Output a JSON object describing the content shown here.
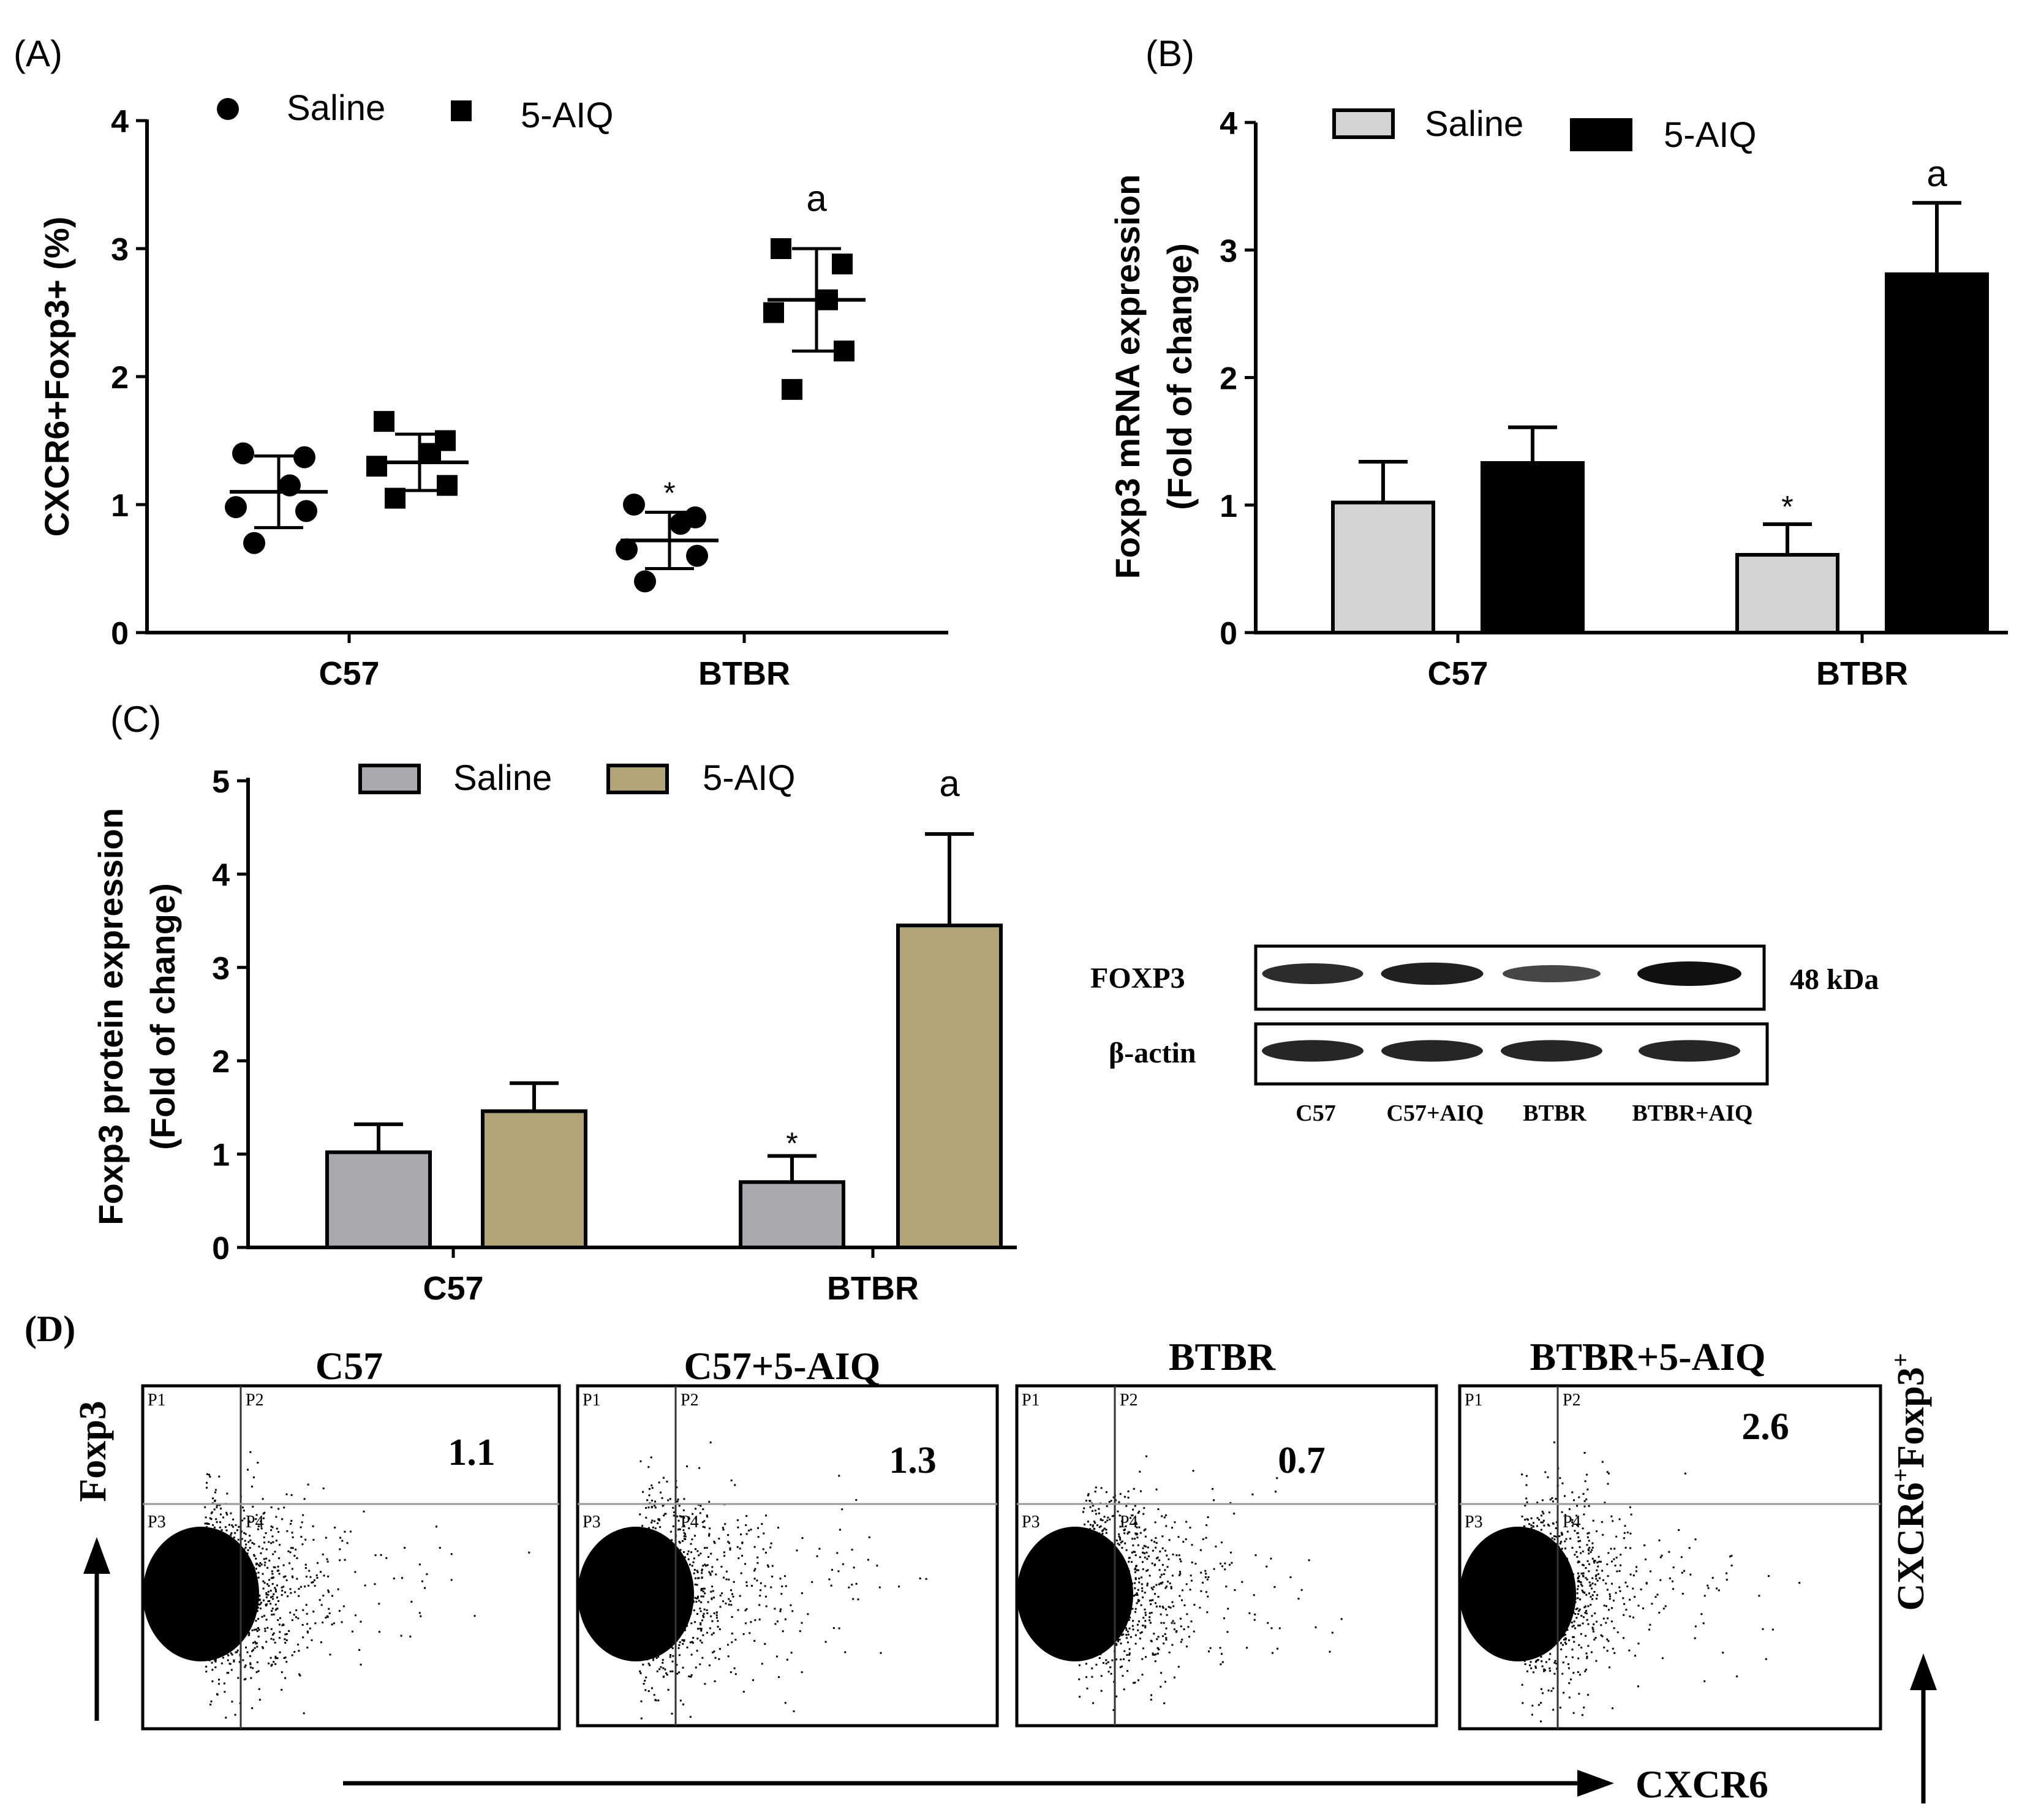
{
  "colors": {
    "ink": "#000000",
    "saline_B": "#d3d3d3",
    "aiq_B": "#000000",
    "saline_C": "#a9a8ae",
    "aiq_C": "#b1a477"
  },
  "chart_data": [
    {
      "panel": "(A)",
      "type": "scatter",
      "ylabel": "CXCR6+Foxp3+ (%)",
      "ylim": [
        0,
        4
      ],
      "yticks": [
        "0",
        "1",
        "2",
        "3",
        "4"
      ],
      "categories": [
        "C57",
        "BTBR"
      ],
      "legend": [
        {
          "label": "Saline",
          "marker": "circle"
        },
        {
          "label": "5-AIQ",
          "marker": "square"
        }
      ],
      "series": [
        {
          "name": "Saline",
          "marker": "circle",
          "points": [
            {
              "group": "C57",
              "y": [
                1.4,
                1.37,
                1.15,
                0.98,
                0.95,
                0.7
              ],
              "mean": 1.1,
              "sd": 0.28
            },
            {
              "group": "BTBR",
              "y": [
                1.0,
                0.9,
                0.85,
                0.65,
                0.6,
                0.4
              ],
              "mean": 0.72,
              "sd": 0.22
            }
          ]
        },
        {
          "name": "5-AIQ",
          "marker": "square",
          "points": [
            {
              "group": "C57",
              "y": [
                1.65,
                1.5,
                1.4,
                1.3,
                1.15,
                1.05
              ],
              "mean": 1.33,
              "sd": 0.22
            },
            {
              "group": "BTBR",
              "y": [
                3.0,
                2.88,
                2.6,
                2.5,
                2.2,
                1.9
              ],
              "mean": 2.6,
              "sd": 0.4
            }
          ]
        }
      ],
      "annotations": [
        {
          "text": "*",
          "group": "BTBR",
          "series": "Saline",
          "y": 1.2
        },
        {
          "text": "a",
          "group": "BTBR",
          "series": "5-AIQ",
          "y": 3.4
        }
      ]
    },
    {
      "panel": "(B)",
      "type": "bar",
      "ylabel_lines": [
        "Foxp3 mRNA expression",
        "(Fold of change)"
      ],
      "ylim": [
        0,
        4
      ],
      "yticks": [
        "0",
        "1",
        "2",
        "3",
        "4"
      ],
      "categories": [
        "C57",
        "BTBR"
      ],
      "series": [
        {
          "name": "Saline",
          "values": [
            1.02,
            0.61
          ],
          "errors": [
            0.32,
            0.24
          ]
        },
        {
          "name": "5-AIQ",
          "values": [
            1.33,
            2.81
          ],
          "errors": [
            0.28,
            0.56
          ]
        }
      ],
      "annotations": [
        {
          "text": "*",
          "group": "BTBR",
          "series": "Saline",
          "y": 1.05
        },
        {
          "text": "a",
          "group": "BTBR",
          "series": "5-AIQ",
          "y": 3.62
        }
      ]
    },
    {
      "panel": "(C)",
      "type": "bar",
      "ylabel_lines": [
        "Foxp3 protein expression",
        "(Fold of change)"
      ],
      "ylim": [
        0,
        5
      ],
      "yticks": [
        "0",
        "1",
        "2",
        "3",
        "4",
        "5"
      ],
      "categories": [
        "C57",
        "BTBR"
      ],
      "series": [
        {
          "name": "Saline",
          "values": [
            1.02,
            0.7
          ],
          "errors": [
            0.3,
            0.28
          ]
        },
        {
          "name": "5-AIQ",
          "values": [
            1.46,
            3.45
          ],
          "errors": [
            0.3,
            0.98
          ]
        }
      ],
      "annotations": [
        {
          "text": "*",
          "group": "BTBR",
          "series": "Saline",
          "y": 1.2
        },
        {
          "text": "a",
          "group": "BTBR",
          "series": "5-AIQ",
          "y": 5.0
        }
      ]
    },
    {
      "panel": "(D)",
      "type": "scatter",
      "subtype": "flow-cytometry",
      "xlabel": "CXCR6",
      "ylabel": "Foxp3",
      "right_label": "CXCR6+Foxp3+",
      "gates": [
        "P1",
        "P2",
        "P3",
        "P4"
      ],
      "plots": [
        {
          "title": "C57",
          "value": "1.1"
        },
        {
          "title": "C57+5-AIQ",
          "value": "1.3"
        },
        {
          "title": "BTBR",
          "value": "0.7"
        },
        {
          "title": "BTBR+5-AIQ",
          "value": "2.6"
        }
      ]
    }
  ],
  "western_blot": {
    "rows": [
      {
        "label": "FOXP3",
        "intensities": [
          0.75,
          0.85,
          0.5,
          1.0
        ]
      },
      {
        "label": "β-actin",
        "intensities": [
          0.8,
          0.8,
          0.8,
          0.8
        ]
      }
    ],
    "size_label": "48 kDa",
    "lanes": [
      "C57",
      "C57+AIQ",
      "BTBR",
      "BTBR+AIQ"
    ]
  }
}
